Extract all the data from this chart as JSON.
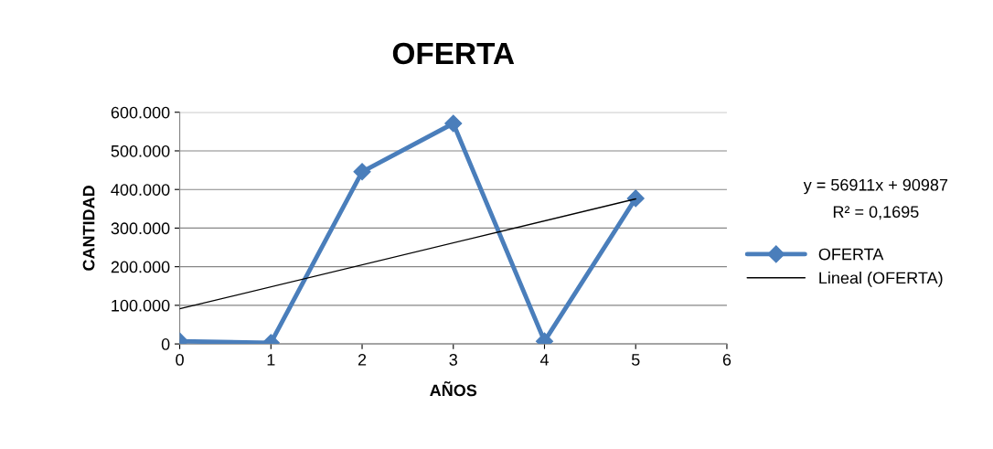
{
  "chart_data": {
    "type": "line",
    "title": "OFERTA",
    "xlabel": "AÑOS",
    "ylabel": "CANTIDAD",
    "x": [
      0,
      1,
      2,
      3,
      4,
      5
    ],
    "series": [
      {
        "name": "OFERTA",
        "color": "#4a7ebb",
        "values": [
          7000,
          3000,
          446000,
          571000,
          7000,
          377000
        ],
        "marker": "diamond"
      },
      {
        "name": "Lineal (OFERTA)",
        "color": "#000000",
        "type": "line",
        "x": [
          0,
          5
        ],
        "values": [
          90987,
          375542
        ],
        "marker": "none"
      }
    ],
    "annotations": [
      "y = 56911x + 90987",
      "R² = 0,1695"
    ],
    "xlim": [
      0,
      6
    ],
    "xticks": [
      0,
      1,
      2,
      3,
      4,
      5,
      6
    ],
    "ylim": [
      0,
      600000
    ],
    "yticks": [
      {
        "value": 0,
        "label": "0"
      },
      {
        "value": 100000,
        "label": "100.000"
      },
      {
        "value": 200000,
        "label": "200.000"
      },
      {
        "value": 300000,
        "label": "300.000"
      },
      {
        "value": 400000,
        "label": "400.000"
      },
      {
        "value": 500000,
        "label": "500.000"
      },
      {
        "value": 600000,
        "label": "600.000"
      }
    ],
    "grid": "y",
    "legend": "right"
  }
}
